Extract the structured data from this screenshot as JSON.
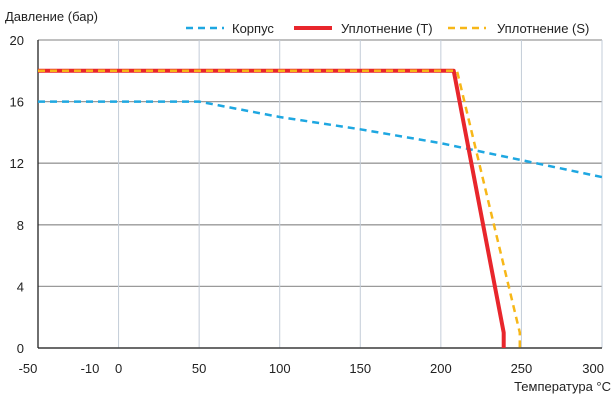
{
  "chart_data": {
    "type": "line",
    "title": "",
    "ylabel": "Давление (бар)",
    "xlabel": "Температура °C",
    "xlim": [
      -50,
      300
    ],
    "ylim": [
      0,
      20
    ],
    "x_ticks": [
      -50,
      0,
      50,
      100,
      150,
      200,
      250,
      300
    ],
    "x_tick_labels": [
      "-50",
      "0",
      "50",
      "100",
      "150",
      "200",
      "250",
      "300"
    ],
    "extra_x_label": {
      "value": -10,
      "text": "-10"
    },
    "y_ticks": [
      0,
      4,
      8,
      12,
      16,
      20
    ],
    "grid": true,
    "legend_position": "top",
    "series": [
      {
        "name": "Корпус",
        "color": "#1ea7e1",
        "style": "dashed",
        "points": [
          [
            -50,
            16
          ],
          [
            0,
            16
          ],
          [
            50,
            16
          ],
          [
            100,
            15
          ],
          [
            150,
            14.2
          ],
          [
            200,
            13.3
          ],
          [
            250,
            12.2
          ],
          [
            300,
            11.1
          ]
        ]
      },
      {
        "name": "Уплотнение (T)",
        "color": "#e8262c",
        "style": "solid",
        "points": [
          [
            -50,
            18
          ],
          [
            208,
            18
          ],
          [
            239,
            1
          ],
          [
            239,
            0
          ]
        ]
      },
      {
        "name": "Уплотнение (S)",
        "color": "#f7b718",
        "style": "dashed",
        "points": [
          [
            -50,
            18
          ],
          [
            210,
            18
          ],
          [
            249,
            1
          ],
          [
            249,
            0
          ]
        ]
      }
    ]
  }
}
